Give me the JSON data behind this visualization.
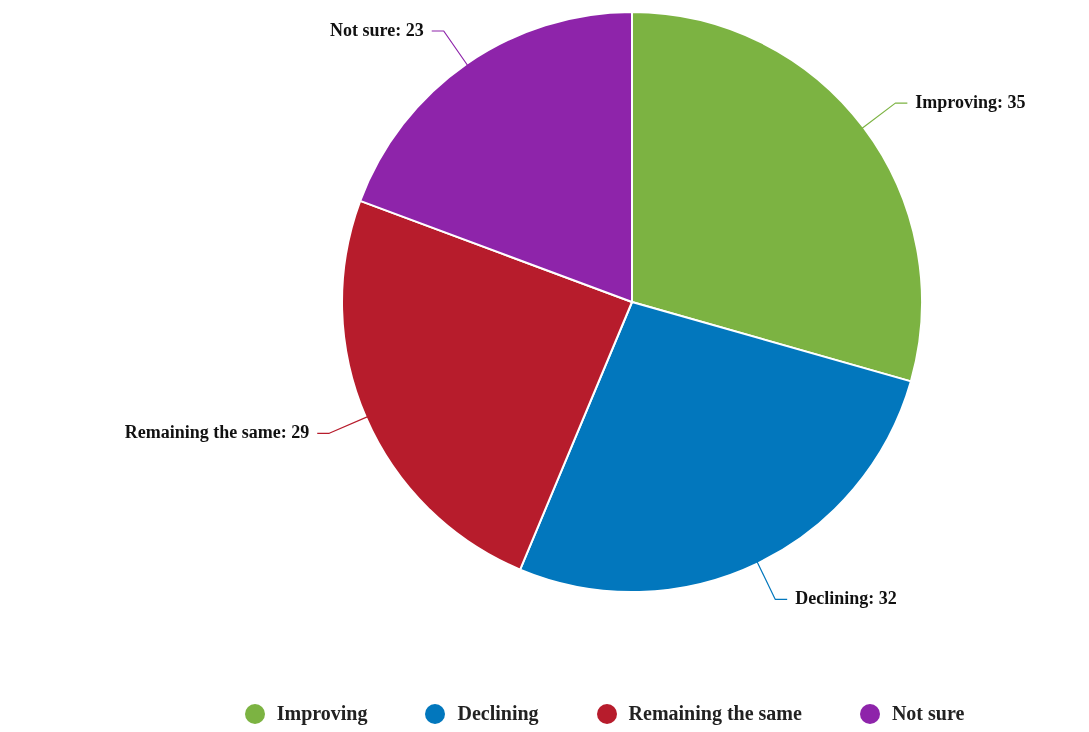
{
  "chart_data": {
    "type": "pie",
    "categories": [
      "Improving",
      "Declining",
      "Remaining the same",
      "Not sure"
    ],
    "values": [
      35,
      32,
      29,
      23
    ],
    "colors": [
      "#7cb342",
      "#0277bd",
      "#b71c2c",
      "#8e24aa"
    ],
    "value_labels": [
      "Improving: 35",
      "Declining: 32",
      "Remaining the same: 29",
      "Not sure: 23"
    ],
    "legend": "bottom"
  }
}
